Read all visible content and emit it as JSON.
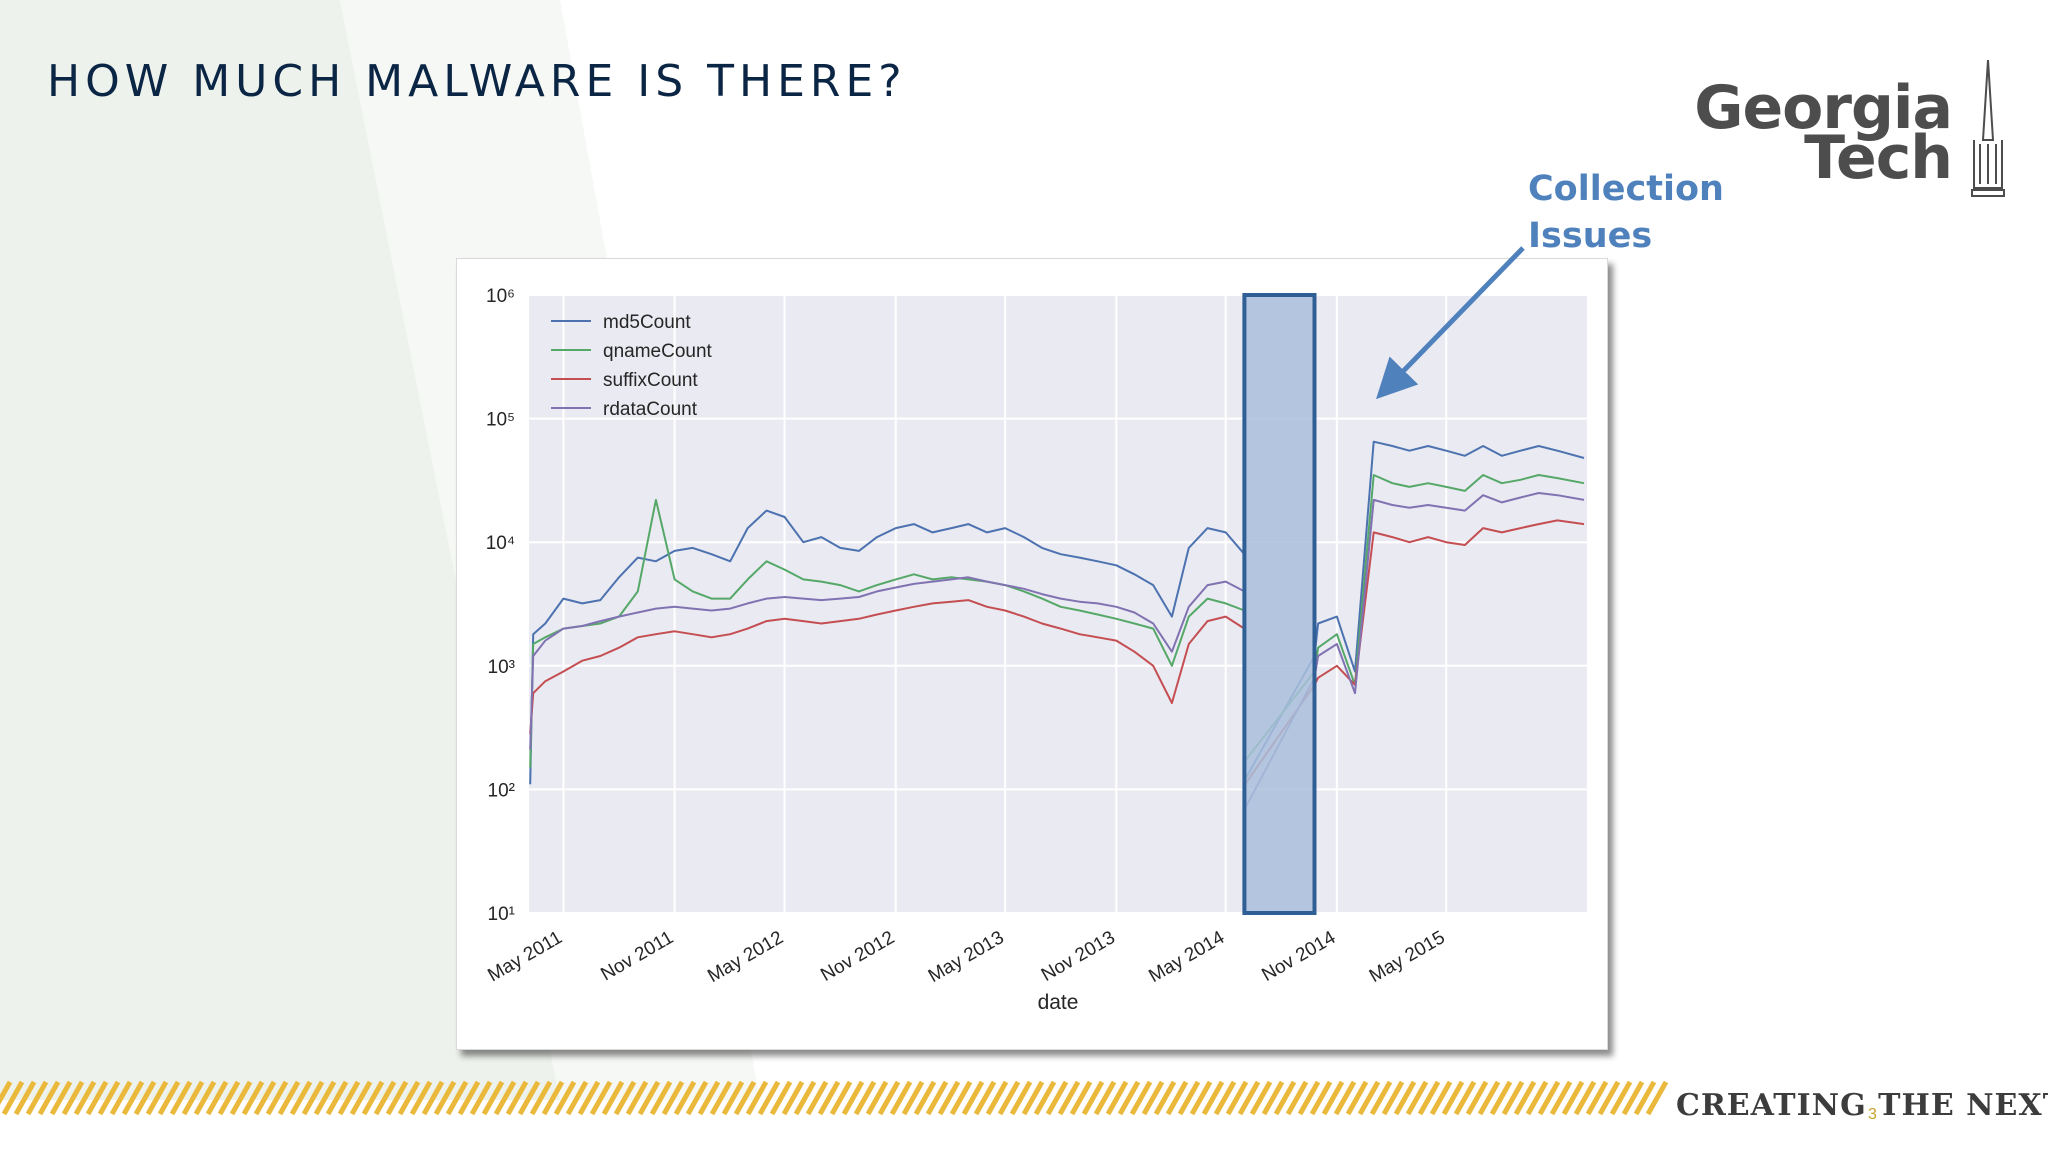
{
  "slide": {
    "title": "HOW MUCH MALWARE IS THERE?",
    "logo_text_line1": "Georgia",
    "logo_text_line2": "Tech",
    "callout_line1": "Collection",
    "callout_line2": "Issues",
    "footer_text": "CREATING THE NEXT",
    "footer_mark": "®",
    "page_number": "3",
    "colors": {
      "title": "#0b2545",
      "callout": "#4f81bd",
      "stripe": "#eab83a",
      "logo": "#4d4d4d"
    }
  },
  "chart_data": {
    "type": "line",
    "xlabel": "date",
    "ylabel": "",
    "y_scale": "log",
    "ylim": [
      10,
      1000000
    ],
    "y_ticks": [
      "10¹",
      "10²",
      "10³",
      "10⁴",
      "10⁵",
      "10⁶"
    ],
    "xlim": [
      "2011-03-05",
      "2015-12-20"
    ],
    "x_ticks": [
      {
        "date": "2011-05-01",
        "label": "May 2011"
      },
      {
        "date": "2011-11-01",
        "label": "Nov 2011"
      },
      {
        "date": "2012-05-01",
        "label": "May 2012"
      },
      {
        "date": "2012-11-01",
        "label": "Nov 2012"
      },
      {
        "date": "2013-05-01",
        "label": "May 2013"
      },
      {
        "date": "2013-11-01",
        "label": "Nov 2013"
      },
      {
        "date": "2014-05-01",
        "label": "May 2014"
      },
      {
        "date": "2014-11-01",
        "label": "Nov 2014"
      },
      {
        "date": "2015-05-01",
        "label": "May 2015"
      }
    ],
    "grid": true,
    "legend_position": "top-left",
    "highlight_range": [
      "2014-06-01",
      "2014-09-25"
    ],
    "series": [
      {
        "name": "md5Count",
        "color": "#4c72b0",
        "points": [
          [
            "2011-03-07",
            110
          ],
          [
            "2011-03-12",
            1800
          ],
          [
            "2011-04-01",
            2200
          ],
          [
            "2011-05-01",
            3500
          ],
          [
            "2011-06-01",
            3200
          ],
          [
            "2011-07-01",
            3400
          ],
          [
            "2011-08-01",
            5200
          ],
          [
            "2011-09-01",
            7500
          ],
          [
            "2011-10-01",
            7000
          ],
          [
            "2011-11-01",
            8500
          ],
          [
            "2011-12-01",
            9000
          ],
          [
            "2012-01-01",
            8000
          ],
          [
            "2012-02-01",
            7000
          ],
          [
            "2012-03-01",
            13000
          ],
          [
            "2012-04-01",
            18000
          ],
          [
            "2012-05-01",
            16000
          ],
          [
            "2012-06-01",
            10000
          ],
          [
            "2012-07-01",
            11000
          ],
          [
            "2012-08-01",
            9000
          ],
          [
            "2012-09-01",
            8500
          ],
          [
            "2012-10-01",
            11000
          ],
          [
            "2012-11-01",
            13000
          ],
          [
            "2012-12-01",
            14000
          ],
          [
            "2013-01-01",
            12000
          ],
          [
            "2013-02-01",
            13000
          ],
          [
            "2013-03-01",
            14000
          ],
          [
            "2013-04-01",
            12000
          ],
          [
            "2013-05-01",
            13000
          ],
          [
            "2013-06-01",
            11000
          ],
          [
            "2013-07-01",
            9000
          ],
          [
            "2013-08-01",
            8000
          ],
          [
            "2013-09-01",
            7500
          ],
          [
            "2013-10-01",
            7000
          ],
          [
            "2013-11-01",
            6500
          ],
          [
            "2013-12-01",
            5500
          ],
          [
            "2014-01-01",
            4500
          ],
          [
            "2014-02-01",
            2500
          ],
          [
            "2014-03-01",
            9000
          ],
          [
            "2014-04-01",
            13000
          ],
          [
            "2014-05-01",
            12000
          ],
          [
            "2014-06-01",
            8000
          ],
          [
            "2014-06-02",
            120
          ],
          [
            "2014-09-25",
            1200
          ],
          [
            "2014-10-01",
            2200
          ],
          [
            "2014-11-01",
            2500
          ],
          [
            "2014-12-01",
            900
          ],
          [
            "2015-01-01",
            65000
          ],
          [
            "2015-02-01",
            60000
          ],
          [
            "2015-03-01",
            55000
          ],
          [
            "2015-04-01",
            60000
          ],
          [
            "2015-05-01",
            55000
          ],
          [
            "2015-06-01",
            50000
          ],
          [
            "2015-07-01",
            60000
          ],
          [
            "2015-08-01",
            50000
          ],
          [
            "2015-09-01",
            55000
          ],
          [
            "2015-10-01",
            60000
          ],
          [
            "2015-11-01",
            55000
          ],
          [
            "2015-12-15",
            48000
          ]
        ]
      },
      {
        "name": "qnameCount",
        "color": "#55a868",
        "points": [
          [
            "2011-03-07",
            150
          ],
          [
            "2011-03-12",
            1500
          ],
          [
            "2011-04-01",
            1700
          ],
          [
            "2011-05-01",
            2000
          ],
          [
            "2011-06-01",
            2100
          ],
          [
            "2011-07-01",
            2200
          ],
          [
            "2011-08-01",
            2500
          ],
          [
            "2011-09-01",
            4000
          ],
          [
            "2011-10-01",
            22000
          ],
          [
            "2011-11-01",
            5000
          ],
          [
            "2011-12-01",
            4000
          ],
          [
            "2012-01-01",
            3500
          ],
          [
            "2012-02-01",
            3500
          ],
          [
            "2012-03-01",
            5000
          ],
          [
            "2012-04-01",
            7000
          ],
          [
            "2012-05-01",
            6000
          ],
          [
            "2012-06-01",
            5000
          ],
          [
            "2012-07-01",
            4800
          ],
          [
            "2012-08-01",
            4500
          ],
          [
            "2012-09-01",
            4000
          ],
          [
            "2012-10-01",
            4500
          ],
          [
            "2012-11-01",
            5000
          ],
          [
            "2012-12-01",
            5500
          ],
          [
            "2013-01-01",
            5000
          ],
          [
            "2013-02-01",
            5200
          ],
          [
            "2013-03-01",
            5000
          ],
          [
            "2013-04-01",
            4800
          ],
          [
            "2013-05-01",
            4500
          ],
          [
            "2013-06-01",
            4000
          ],
          [
            "2013-07-01",
            3500
          ],
          [
            "2013-08-01",
            3000
          ],
          [
            "2013-09-01",
            2800
          ],
          [
            "2013-10-01",
            2600
          ],
          [
            "2013-11-01",
            2400
          ],
          [
            "2013-12-01",
            2200
          ],
          [
            "2014-01-01",
            2000
          ],
          [
            "2014-02-01",
            1000
          ],
          [
            "2014-03-01",
            2500
          ],
          [
            "2014-04-01",
            3500
          ],
          [
            "2014-05-01",
            3200
          ],
          [
            "2014-06-01",
            2800
          ],
          [
            "2014-06-02",
            170
          ],
          [
            "2014-09-25",
            900
          ],
          [
            "2014-10-01",
            1400
          ],
          [
            "2014-11-01",
            1800
          ],
          [
            "2014-12-01",
            700
          ],
          [
            "2015-01-01",
            35000
          ],
          [
            "2015-02-01",
            30000
          ],
          [
            "2015-03-01",
            28000
          ],
          [
            "2015-04-01",
            30000
          ],
          [
            "2015-05-01",
            28000
          ],
          [
            "2015-06-01",
            26000
          ],
          [
            "2015-07-01",
            35000
          ],
          [
            "2015-08-01",
            30000
          ],
          [
            "2015-09-01",
            32000
          ],
          [
            "2015-10-01",
            35000
          ],
          [
            "2015-11-01",
            33000
          ],
          [
            "2015-12-15",
            30000
          ]
        ]
      },
      {
        "name": "suffixCount",
        "color": "#c44e52",
        "points": [
          [
            "2011-03-07",
            280
          ],
          [
            "2011-03-12",
            600
          ],
          [
            "2011-04-01",
            750
          ],
          [
            "2011-05-01",
            900
          ],
          [
            "2011-06-01",
            1100
          ],
          [
            "2011-07-01",
            1200
          ],
          [
            "2011-08-01",
            1400
          ],
          [
            "2011-09-01",
            1700
          ],
          [
            "2011-10-01",
            1800
          ],
          [
            "2011-11-01",
            1900
          ],
          [
            "2011-12-01",
            1800
          ],
          [
            "2012-01-01",
            1700
          ],
          [
            "2012-02-01",
            1800
          ],
          [
            "2012-03-01",
            2000
          ],
          [
            "2012-04-01",
            2300
          ],
          [
            "2012-05-01",
            2400
          ],
          [
            "2012-06-01",
            2300
          ],
          [
            "2012-07-01",
            2200
          ],
          [
            "2012-08-01",
            2300
          ],
          [
            "2012-09-01",
            2400
          ],
          [
            "2012-10-01",
            2600
          ],
          [
            "2012-11-01",
            2800
          ],
          [
            "2012-12-01",
            3000
          ],
          [
            "2013-01-01",
            3200
          ],
          [
            "2013-02-01",
            3300
          ],
          [
            "2013-03-01",
            3400
          ],
          [
            "2013-04-01",
            3000
          ],
          [
            "2013-05-01",
            2800
          ],
          [
            "2013-06-01",
            2500
          ],
          [
            "2013-07-01",
            2200
          ],
          [
            "2013-08-01",
            2000
          ],
          [
            "2013-09-01",
            1800
          ],
          [
            "2013-10-01",
            1700
          ],
          [
            "2013-11-01",
            1600
          ],
          [
            "2013-12-01",
            1300
          ],
          [
            "2014-01-01",
            1000
          ],
          [
            "2014-02-01",
            500
          ],
          [
            "2014-03-01",
            1500
          ],
          [
            "2014-04-01",
            2300
          ],
          [
            "2014-05-01",
            2500
          ],
          [
            "2014-06-01",
            2000
          ],
          [
            "2014-06-02",
            110
          ],
          [
            "2014-09-25",
            700
          ],
          [
            "2014-10-01",
            800
          ],
          [
            "2014-11-01",
            1000
          ],
          [
            "2014-12-01",
            700
          ],
          [
            "2015-01-01",
            12000
          ],
          [
            "2015-02-01",
            11000
          ],
          [
            "2015-03-01",
            10000
          ],
          [
            "2015-04-01",
            11000
          ],
          [
            "2015-05-01",
            10000
          ],
          [
            "2015-06-01",
            9500
          ],
          [
            "2015-07-01",
            13000
          ],
          [
            "2015-08-01",
            12000
          ],
          [
            "2015-09-01",
            13000
          ],
          [
            "2015-10-01",
            14000
          ],
          [
            "2015-11-01",
            15000
          ],
          [
            "2015-12-15",
            14000
          ]
        ]
      },
      {
        "name": "rdataCount",
        "color": "#8172b2",
        "points": [
          [
            "2011-03-07",
            210
          ],
          [
            "2011-03-12",
            1200
          ],
          [
            "2011-04-01",
            1600
          ],
          [
            "2011-05-01",
            2000
          ],
          [
            "2011-06-01",
            2100
          ],
          [
            "2011-07-01",
            2300
          ],
          [
            "2011-08-01",
            2500
          ],
          [
            "2011-09-01",
            2700
          ],
          [
            "2011-10-01",
            2900
          ],
          [
            "2011-11-01",
            3000
          ],
          [
            "2011-12-01",
            2900
          ],
          [
            "2012-01-01",
            2800
          ],
          [
            "2012-02-01",
            2900
          ],
          [
            "2012-03-01",
            3200
          ],
          [
            "2012-04-01",
            3500
          ],
          [
            "2012-05-01",
            3600
          ],
          [
            "2012-06-01",
            3500
          ],
          [
            "2012-07-01",
            3400
          ],
          [
            "2012-08-01",
            3500
          ],
          [
            "2012-09-01",
            3600
          ],
          [
            "2012-10-01",
            4000
          ],
          [
            "2012-11-01",
            4300
          ],
          [
            "2012-12-01",
            4600
          ],
          [
            "2013-01-01",
            4800
          ],
          [
            "2013-02-01",
            5000
          ],
          [
            "2013-03-01",
            5200
          ],
          [
            "2013-04-01",
            4800
          ],
          [
            "2013-05-01",
            4500
          ],
          [
            "2013-06-01",
            4200
          ],
          [
            "2013-07-01",
            3800
          ],
          [
            "2013-08-01",
            3500
          ],
          [
            "2013-09-01",
            3300
          ],
          [
            "2013-10-01",
            3200
          ],
          [
            "2013-11-01",
            3000
          ],
          [
            "2013-12-01",
            2700
          ],
          [
            "2014-01-01",
            2200
          ],
          [
            "2014-02-01",
            1300
          ],
          [
            "2014-03-01",
            3000
          ],
          [
            "2014-04-01",
            4500
          ],
          [
            "2014-05-01",
            4800
          ],
          [
            "2014-06-01",
            4000
          ],
          [
            "2014-06-02",
            70
          ],
          [
            "2014-09-25",
            800
          ],
          [
            "2014-10-01",
            1200
          ],
          [
            "2014-11-01",
            1500
          ],
          [
            "2014-12-01",
            600
          ],
          [
            "2015-01-01",
            22000
          ],
          [
            "2015-02-01",
            20000
          ],
          [
            "2015-03-01",
            19000
          ],
          [
            "2015-04-01",
            20000
          ],
          [
            "2015-05-01",
            19000
          ],
          [
            "2015-06-01",
            18000
          ],
          [
            "2015-07-01",
            24000
          ],
          [
            "2015-08-01",
            21000
          ],
          [
            "2015-09-01",
            23000
          ],
          [
            "2015-10-01",
            25000
          ],
          [
            "2015-11-01",
            24000
          ],
          [
            "2015-12-15",
            22000
          ]
        ]
      }
    ]
  }
}
